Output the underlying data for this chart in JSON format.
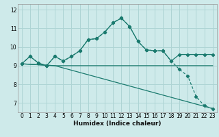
{
  "xlabel": "Humidex (Indice chaleur)",
  "bg_color": "#ceeaea",
  "grid_color": "#aed4d4",
  "line_color": "#1a7a6e",
  "xlim": [
    -0.5,
    23.5
  ],
  "ylim": [
    6.5,
    12.3
  ],
  "yticks": [
    7,
    8,
    9,
    10,
    11,
    12
  ],
  "xticks": [
    0,
    1,
    2,
    3,
    4,
    5,
    6,
    7,
    8,
    9,
    10,
    11,
    12,
    13,
    14,
    15,
    16,
    17,
    18,
    19,
    20,
    21,
    22,
    23
  ],
  "line1_x": [
    0,
    1,
    2,
    3,
    4,
    5,
    6,
    7,
    8,
    9,
    10,
    11,
    12,
    13,
    14,
    15,
    16,
    17,
    18,
    19,
    20,
    21,
    22,
    23
  ],
  "line1_y": [
    9.1,
    9.5,
    9.15,
    9.0,
    9.5,
    9.25,
    9.5,
    9.8,
    10.4,
    10.45,
    10.8,
    11.3,
    11.55,
    11.1,
    10.3,
    9.85,
    9.8,
    9.8,
    9.25,
    9.6,
    9.6,
    9.6,
    9.6,
    9.6
  ],
  "line2_x": [
    0,
    1,
    2,
    3,
    4,
    5,
    6,
    7,
    8,
    9,
    10,
    11,
    12,
    13,
    14,
    15,
    16,
    17,
    18,
    19,
    20,
    21,
    22,
    23
  ],
  "line2_y": [
    9.1,
    9.5,
    9.15,
    9.0,
    9.5,
    9.25,
    9.5,
    9.8,
    10.4,
    10.45,
    10.8,
    11.3,
    11.55,
    11.1,
    10.3,
    9.85,
    9.8,
    9.8,
    9.25,
    8.8,
    8.45,
    7.35,
    6.85,
    6.7
  ],
  "line3_x": [
    0,
    4,
    23
  ],
  "line3_y": [
    9.1,
    9.0,
    9.0
  ],
  "line4_x": [
    0,
    4,
    23
  ],
  "line4_y": [
    9.1,
    9.0,
    6.7
  ],
  "xlabel_fontsize": 6.5,
  "tick_fontsize": 5.5
}
